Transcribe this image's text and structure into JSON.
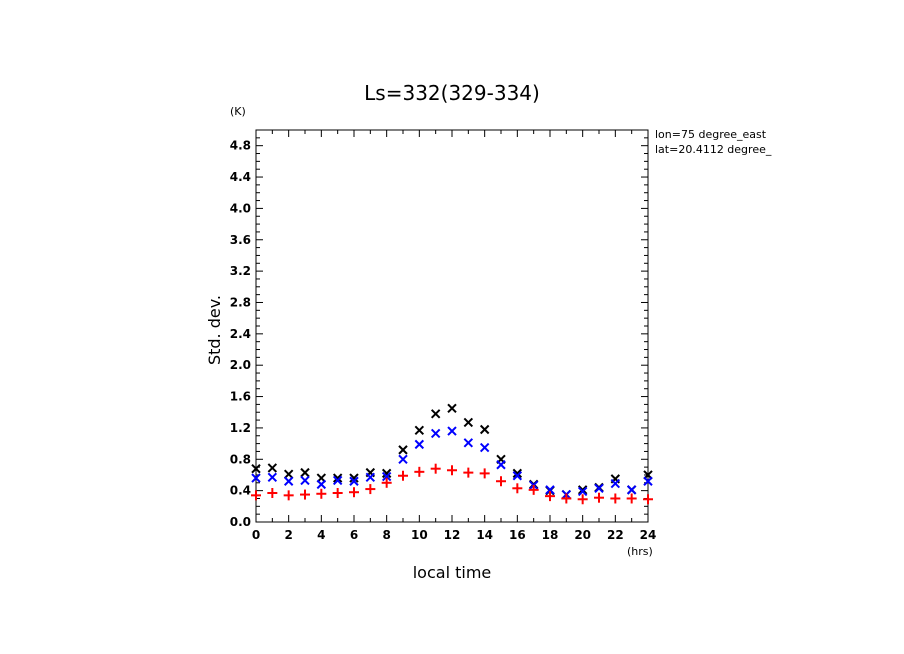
{
  "chart_data": {
    "type": "scatter",
    "title": "Ls=332(329-334)",
    "xlabel": "local time",
    "ylabel": "Std. dev.",
    "xunit": "(hrs)",
    "yunit": "(K)",
    "xlim": [
      0,
      24
    ],
    "ylim": [
      0,
      5.0
    ],
    "xticks": [
      "0",
      "2",
      "4",
      "6",
      "8",
      "10",
      "12",
      "14",
      "16",
      "18",
      "20",
      "22",
      "24"
    ],
    "yticks": [
      "0.0",
      "0.4",
      "0.8",
      "1.2",
      "1.6",
      "2.0",
      "2.4",
      "2.8",
      "3.2",
      "3.6",
      "4.0",
      "4.4",
      "4.8"
    ],
    "annotations": [
      "lon=75 degree_east",
      "lat=20.4112 degree_"
    ],
    "grid": false,
    "series": [
      {
        "marker": "x",
        "color": "#000000",
        "x": [
          0,
          1,
          2,
          3,
          4,
          5,
          6,
          7,
          8,
          9,
          10,
          11,
          12,
          13,
          14,
          15,
          16,
          17,
          18,
          19,
          20,
          21,
          22,
          23,
          24
        ],
        "y": [
          0.68,
          0.69,
          0.61,
          0.63,
          0.56,
          0.56,
          0.56,
          0.63,
          0.62,
          0.92,
          1.17,
          1.38,
          1.45,
          1.27,
          1.18,
          0.8,
          0.62,
          0.48,
          0.4,
          0.35,
          0.41,
          0.44,
          0.55,
          0.41,
          0.6
        ]
      },
      {
        "marker": "x",
        "color": "#0000ff",
        "x": [
          0,
          1,
          2,
          3,
          4,
          5,
          6,
          7,
          8,
          9,
          10,
          11,
          12,
          13,
          14,
          15,
          16,
          17,
          18,
          19,
          20,
          21,
          22,
          23,
          24
        ],
        "y": [
          0.56,
          0.57,
          0.52,
          0.53,
          0.48,
          0.53,
          0.52,
          0.57,
          0.58,
          0.8,
          0.99,
          1.13,
          1.16,
          1.01,
          0.95,
          0.73,
          0.59,
          0.47,
          0.41,
          0.35,
          0.39,
          0.43,
          0.49,
          0.41,
          0.52
        ]
      },
      {
        "marker": "+",
        "color": "#ff0000",
        "x": [
          0,
          1,
          2,
          3,
          4,
          5,
          6,
          7,
          8,
          9,
          10,
          11,
          12,
          13,
          14,
          15,
          16,
          17,
          18,
          19,
          20,
          21,
          22,
          23,
          24
        ],
        "y": [
          0.34,
          0.37,
          0.34,
          0.35,
          0.36,
          0.37,
          0.38,
          0.42,
          0.5,
          0.59,
          0.64,
          0.68,
          0.66,
          0.63,
          0.62,
          0.52,
          0.43,
          0.41,
          0.33,
          0.3,
          0.29,
          0.31,
          0.3,
          0.3,
          0.29
        ]
      }
    ]
  }
}
